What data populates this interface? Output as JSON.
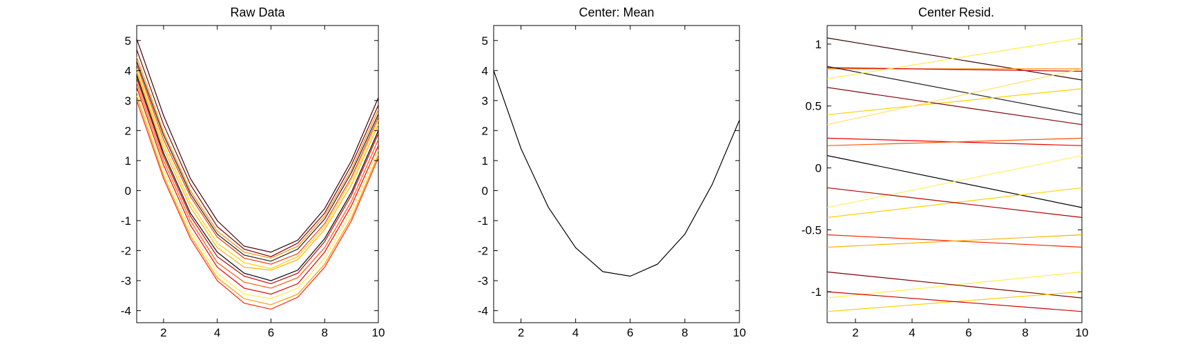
{
  "chart_data": [
    {
      "type": "line",
      "title": "Raw Data",
      "xlabel": "",
      "ylabel": "",
      "xlim": [
        1,
        10
      ],
      "ylim": [
        -4.4,
        5.5
      ],
      "xticks": [
        2,
        4,
        6,
        8,
        10
      ],
      "yticks": [
        -4,
        -3,
        -2,
        -1,
        0,
        1,
        2,
        3,
        4,
        5
      ],
      "x": [
        1,
        2,
        3,
        4,
        5,
        6,
        7,
        8,
        9,
        10
      ],
      "series": [
        {
          "color": "#3a0000",
          "values": [
            5.05,
            2.5,
            0.4,
            -1.0,
            -1.85,
            -2.05,
            -1.65,
            -0.6,
            1.0,
            3.1
          ]
        },
        {
          "color": "#7a0000",
          "values": [
            4.7,
            2.2,
            0.2,
            -1.2,
            -1.95,
            -2.2,
            -1.75,
            -0.75,
            0.85,
            2.85
          ]
        },
        {
          "color": "#ff8c00",
          "values": [
            4.45,
            1.95,
            0.0,
            -1.35,
            -2.05,
            -2.25,
            -1.85,
            -0.85,
            0.7,
            2.7
          ]
        },
        {
          "color": "#1a1a1a",
          "values": [
            4.3,
            1.85,
            -0.1,
            -1.45,
            -2.15,
            -2.35,
            -1.95,
            -0.95,
            0.6,
            2.55
          ]
        },
        {
          "color": "#ff3300",
          "values": [
            4.2,
            1.7,
            -0.2,
            -1.55,
            -2.25,
            -2.45,
            -2.1,
            -1.1,
            0.45,
            2.45
          ]
        },
        {
          "color": "#ffd000",
          "values": [
            4.05,
            1.55,
            -0.4,
            -1.75,
            -2.4,
            -2.6,
            -2.2,
            -1.2,
            0.35,
            2.35
          ]
        },
        {
          "color": "#ffb000",
          "values": [
            3.95,
            1.4,
            -0.55,
            -1.9,
            -2.55,
            -2.65,
            -2.3,
            -1.3,
            0.2,
            2.2
          ]
        },
        {
          "color": "#000000",
          "values": [
            3.85,
            1.25,
            -0.75,
            -2.05,
            -2.75,
            -3.0,
            -2.65,
            -1.6,
            -0.05,
            2.0
          ]
        },
        {
          "color": "#cc0000",
          "values": [
            3.75,
            1.15,
            -0.85,
            -2.2,
            -2.85,
            -3.1,
            -2.75,
            -1.7,
            -0.15,
            1.9
          ]
        },
        {
          "color": "#ff5500",
          "values": [
            3.6,
            1.0,
            -1.0,
            -2.4,
            -3.05,
            -3.25,
            -2.9,
            -1.9,
            -0.35,
            1.7
          ]
        },
        {
          "color": "#e60000",
          "values": [
            3.45,
            0.85,
            -1.15,
            -2.55,
            -3.25,
            -3.45,
            -3.1,
            -2.05,
            -0.5,
            1.5
          ]
        },
        {
          "color": "#ffee44",
          "values": [
            3.3,
            0.7,
            -1.35,
            -2.75,
            -3.45,
            -3.6,
            -3.25,
            -2.25,
            -0.7,
            1.35
          ]
        },
        {
          "color": "#ff9900",
          "values": [
            3.15,
            0.5,
            -1.5,
            -2.9,
            -3.6,
            -3.8,
            -3.45,
            -2.45,
            -0.9,
            1.2
          ]
        },
        {
          "color": "#ff2200",
          "values": [
            3.0,
            0.4,
            -1.6,
            -3.0,
            -3.75,
            -3.95,
            -3.55,
            -2.55,
            -1.0,
            1.1
          ]
        }
      ]
    },
    {
      "type": "line",
      "title": "Center: Mean",
      "xlabel": "",
      "ylabel": "",
      "xlim": [
        1,
        10
      ],
      "ylim": [
        -4.4,
        5.5
      ],
      "xticks": [
        2,
        4,
        6,
        8,
        10
      ],
      "yticks": [
        -4,
        -3,
        -2,
        -1,
        0,
        1,
        2,
        3,
        4,
        5
      ],
      "x": [
        1,
        2,
        3,
        4,
        5,
        6,
        7,
        8,
        9,
        10
      ],
      "series": [
        {
          "color": "#000000",
          "values": [
            4.0,
            1.4,
            -0.55,
            -1.9,
            -2.7,
            -2.85,
            -2.45,
            -1.45,
            0.2,
            2.35
          ]
        }
      ]
    },
    {
      "type": "line",
      "title": "Center Resid.",
      "xlabel": "",
      "ylabel": "",
      "xlim": [
        1,
        10
      ],
      "ylim": [
        -1.25,
        1.15
      ],
      "xticks": [
        2,
        4,
        6,
        8,
        10
      ],
      "yticks": [
        -1,
        -0.5,
        0,
        0.5,
        1
      ],
      "x": [
        1,
        10
      ],
      "series": [
        {
          "color": "#3a0000",
          "values": [
            1.05,
            0.71
          ]
        },
        {
          "color": "#ff8c00",
          "values": [
            0.8,
            0.8
          ]
        },
        {
          "color": "#cc0000",
          "values": [
            0.81,
            0.78
          ]
        },
        {
          "color": "#1a1a1a",
          "values": [
            0.82,
            0.43
          ]
        },
        {
          "color": "#ffee44",
          "values": [
            0.72,
            1.05
          ]
        },
        {
          "color": "#ffd000",
          "values": [
            0.43,
            0.64
          ]
        },
        {
          "color": "#7a0000",
          "values": [
            0.65,
            0.35
          ]
        },
        {
          "color": "#ffe066",
          "values": [
            0.35,
            0.8
          ]
        },
        {
          "color": "#e60000",
          "values": [
            0.24,
            0.18
          ]
        },
        {
          "color": "#ff5500",
          "values": [
            0.18,
            0.24
          ]
        },
        {
          "color": "#000000",
          "values": [
            0.1,
            -0.32
          ]
        },
        {
          "color": "#fff066",
          "values": [
            -0.32,
            0.1
          ]
        },
        {
          "color": "#ffd000",
          "values": [
            -0.4,
            -0.16
          ]
        },
        {
          "color": "#b00000",
          "values": [
            -0.16,
            -0.4
          ]
        },
        {
          "color": "#ff2200",
          "values": [
            -0.54,
            -0.64
          ]
        },
        {
          "color": "#ffb000",
          "values": [
            -0.64,
            -0.54
          ]
        },
        {
          "color": "#ffee44",
          "values": [
            -1.05,
            -0.84
          ]
        },
        {
          "color": "#7a0000",
          "values": [
            -0.84,
            -1.05
          ]
        },
        {
          "color": "#ffcc00",
          "values": [
            -1.16,
            -1.0
          ]
        },
        {
          "color": "#cc0000",
          "values": [
            -1.0,
            -1.16
          ]
        }
      ]
    }
  ]
}
